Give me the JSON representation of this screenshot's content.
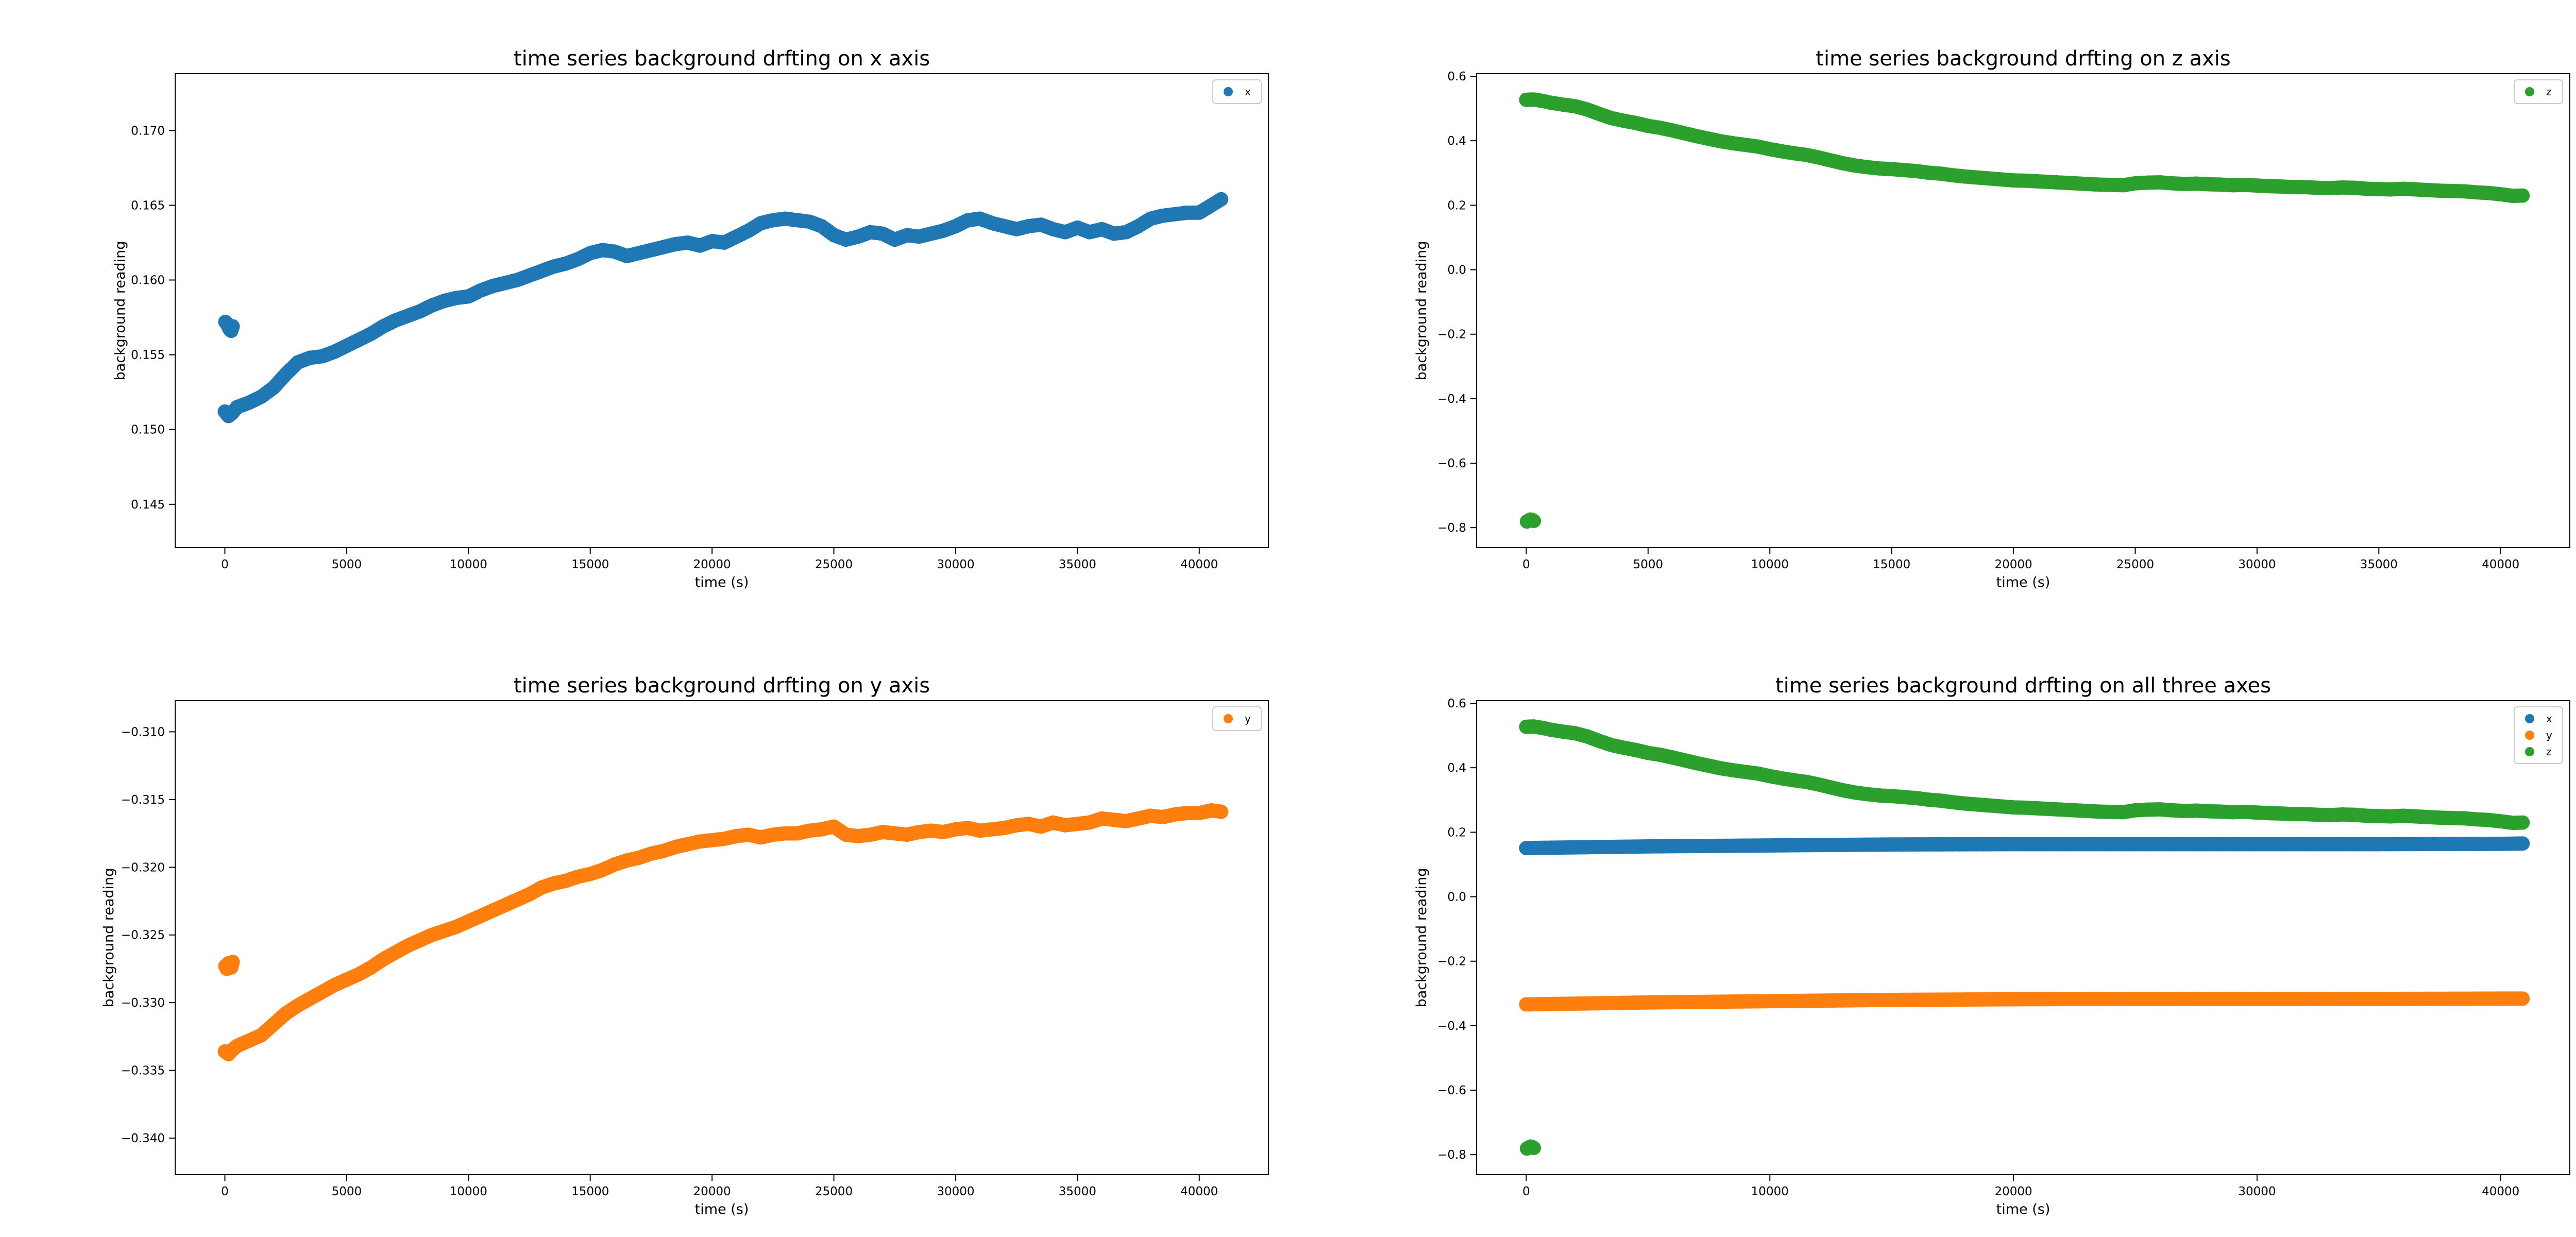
{
  "colors": {
    "x": "#1f77b4",
    "y": "#ff7f0e",
    "z": "#2ca02c"
  },
  "chart_data": [
    {
      "type": "scatter",
      "title": "time series background drfting on x axis",
      "xlabel": "time (s)",
      "ylabel": "background reading",
      "xlim": [
        -2040,
        42840
      ],
      "ylim": [
        0.1421,
        0.1738
      ],
      "xticks": [
        0,
        5000,
        10000,
        15000,
        20000,
        25000,
        30000,
        35000,
        40000
      ],
      "xtick_labels": [
        "0",
        "5000",
        "10000",
        "15000",
        "20000",
        "25000",
        "30000",
        "35000",
        "40000"
      ],
      "yticks": [
        0.145,
        0.15,
        0.155,
        0.16,
        0.165,
        0.17
      ],
      "ytick_labels": [
        "0.145",
        "0.150",
        "0.155",
        "0.160",
        "0.165",
        "0.170"
      ],
      "legend_position": "top-right",
      "series": [
        {
          "name": "x",
          "color_key": "x",
          "x": [
            0,
            150,
            300,
            500,
            1000,
            1500,
            2000,
            2500,
            3000,
            3500,
            4000,
            4500,
            5000,
            5500,
            6000,
            6500,
            7000,
            7500,
            8000,
            8500,
            9000,
            9500,
            10000,
            10500,
            11000,
            11500,
            12000,
            12500,
            13000,
            13500,
            14000,
            14500,
            15000,
            15500,
            16000,
            16500,
            17000,
            17500,
            18000,
            18500,
            19000,
            19500,
            20000,
            20500,
            21000,
            21500,
            22000,
            22500,
            23000,
            23500,
            24000,
            24500,
            25000,
            25500,
            26000,
            26500,
            27000,
            27500,
            28000,
            28500,
            29000,
            29500,
            30000,
            30500,
            31000,
            31500,
            32000,
            32500,
            33000,
            33500,
            34000,
            34500,
            35000,
            35500,
            36000,
            36500,
            37000,
            37500,
            38000,
            38500,
            39000,
            39500,
            40000,
            40500,
            40900
          ],
          "y": [
            0.1512,
            0.1509,
            0.1511,
            0.1515,
            0.1518,
            0.1522,
            0.1528,
            0.1537,
            0.1545,
            0.1548,
            0.1549,
            0.1552,
            0.1556,
            0.156,
            0.1564,
            0.1569,
            0.1573,
            0.1576,
            0.1579,
            0.1583,
            0.1586,
            0.1588,
            0.1589,
            0.1593,
            0.1596,
            0.1598,
            0.16,
            0.1603,
            0.1606,
            0.1609,
            0.1611,
            0.1614,
            0.1618,
            0.162,
            0.1619,
            0.1616,
            0.1618,
            0.162,
            0.1622,
            0.1624,
            0.1625,
            0.1623,
            0.1626,
            0.1625,
            0.1629,
            0.1633,
            0.1638,
            0.164,
            0.1641,
            0.164,
            0.1639,
            0.1636,
            0.163,
            0.1627,
            0.1629,
            0.1632,
            0.1631,
            0.1627,
            0.163,
            0.1629,
            0.1631,
            0.1633,
            0.1636,
            0.164,
            0.1641,
            0.1638,
            0.1636,
            0.1634,
            0.1636,
            0.1637,
            0.1634,
            0.1632,
            0.1635,
            0.1632,
            0.1634,
            0.1631,
            0.1632,
            0.1636,
            0.1641,
            0.1643,
            0.1644,
            0.1645,
            0.1645,
            0.165,
            0.1654
          ]
        },
        {
          "name": "x",
          "color_key": "x",
          "x": [
            20,
            80,
            140,
            200,
            260,
            320
          ],
          "y": [
            0.1572,
            0.1571,
            0.1569,
            0.1567,
            0.1566,
            0.1569
          ]
        }
      ]
    },
    {
      "type": "scatter",
      "title": "time series background drfting on z axis",
      "xlabel": "time (s)",
      "ylabel": "background reading",
      "xlim": [
        -2040,
        42840
      ],
      "ylim": [
        -0.862,
        0.608
      ],
      "xticks": [
        0,
        5000,
        10000,
        15000,
        20000,
        25000,
        30000,
        35000,
        40000
      ],
      "xtick_labels": [
        "0",
        "5000",
        "10000",
        "15000",
        "20000",
        "25000",
        "30000",
        "35000",
        "40000"
      ],
      "yticks": [
        -0.8,
        -0.6,
        -0.4,
        -0.2,
        0.0,
        0.2,
        0.4,
        0.6
      ],
      "ytick_labels": [
        "−0.8",
        "−0.6",
        "−0.4",
        "−0.2",
        "0.0",
        "0.2",
        "0.4",
        "0.6"
      ],
      "legend_position": "top-right",
      "series": [
        {
          "name": "z",
          "color_key": "z",
          "x": [
            0,
            300,
            700,
            1000,
            1500,
            2000,
            2500,
            3000,
            3500,
            4000,
            4500,
            5000,
            5500,
            6000,
            6500,
            7000,
            7500,
            8000,
            8500,
            9000,
            9500,
            10000,
            10500,
            11000,
            11500,
            12000,
            12500,
            13000,
            13500,
            14000,
            14500,
            15000,
            15500,
            16000,
            16500,
            17000,
            17500,
            18000,
            18500,
            19000,
            19500,
            20000,
            20500,
            21000,
            21500,
            22000,
            22500,
            23000,
            23500,
            24000,
            24500,
            25000,
            25500,
            26000,
            26500,
            27000,
            27500,
            28000,
            28500,
            29000,
            29500,
            30000,
            30500,
            31000,
            31500,
            32000,
            32500,
            33000,
            33500,
            34000,
            34500,
            35000,
            35500,
            36000,
            36500,
            37000,
            37500,
            38000,
            38500,
            39000,
            39500,
            40000,
            40500,
            40900
          ],
          "y": [
            0.527,
            0.528,
            0.523,
            0.518,
            0.512,
            0.507,
            0.497,
            0.483,
            0.47,
            0.462,
            0.455,
            0.446,
            0.44,
            0.432,
            0.423,
            0.414,
            0.406,
            0.398,
            0.392,
            0.387,
            0.382,
            0.374,
            0.367,
            0.361,
            0.356,
            0.348,
            0.339,
            0.33,
            0.323,
            0.318,
            0.314,
            0.312,
            0.309,
            0.306,
            0.301,
            0.298,
            0.293,
            0.289,
            0.286,
            0.283,
            0.28,
            0.277,
            0.276,
            0.274,
            0.272,
            0.27,
            0.268,
            0.266,
            0.264,
            0.263,
            0.262,
            0.268,
            0.27,
            0.271,
            0.268,
            0.266,
            0.267,
            0.265,
            0.264,
            0.262,
            0.263,
            0.261,
            0.259,
            0.258,
            0.256,
            0.256,
            0.254,
            0.253,
            0.255,
            0.254,
            0.251,
            0.25,
            0.249,
            0.251,
            0.249,
            0.247,
            0.245,
            0.244,
            0.243,
            0.24,
            0.238,
            0.234,
            0.229,
            0.23
          ]
        },
        {
          "name": "z",
          "color_key": "z",
          "x": [
            30,
            100,
            170,
            240,
            310
          ],
          "y": [
            -0.781,
            -0.778,
            -0.775,
            -0.776,
            -0.779
          ]
        }
      ]
    },
    {
      "type": "scatter",
      "title": "time series background drfting on y axis",
      "xlabel": "time (s)",
      "ylabel": "background reading",
      "xlim": [
        -2040,
        42840
      ],
      "ylim": [
        -0.3427,
        -0.3077
      ],
      "xticks": [
        0,
        5000,
        10000,
        15000,
        20000,
        25000,
        30000,
        35000,
        40000
      ],
      "xtick_labels": [
        "0",
        "5000",
        "10000",
        "15000",
        "20000",
        "25000",
        "30000",
        "35000",
        "40000"
      ],
      "yticks": [
        -0.34,
        -0.335,
        -0.33,
        -0.325,
        -0.32,
        -0.315,
        -0.31
      ],
      "ytick_labels": [
        "−0.340",
        "−0.335",
        "−0.330",
        "−0.325",
        "−0.320",
        "−0.315",
        "−0.310"
      ],
      "legend_position": "top-right",
      "series": [
        {
          "name": "y",
          "color_key": "y",
          "x": [
            0,
            150,
            300,
            500,
            1000,
            1500,
            2000,
            2500,
            3000,
            3500,
            4000,
            4500,
            5000,
            5500,
            6000,
            6500,
            7000,
            7500,
            8000,
            8500,
            9000,
            9500,
            10000,
            10500,
            11000,
            11500,
            12000,
            12500,
            13000,
            13500,
            14000,
            14500,
            15000,
            15500,
            16000,
            16500,
            17000,
            17500,
            18000,
            18500,
            19000,
            19500,
            20000,
            20500,
            21000,
            21500,
            22000,
            22500,
            23000,
            23500,
            24000,
            24500,
            25000,
            25500,
            26000,
            26500,
            27000,
            27500,
            28000,
            28500,
            29000,
            29500,
            30000,
            30500,
            31000,
            31500,
            32000,
            32500,
            33000,
            33500,
            34000,
            34500,
            35000,
            35500,
            36000,
            36500,
            37000,
            37500,
            38000,
            38500,
            39000,
            39500,
            40000,
            40500,
            40900
          ],
          "y": [
            -0.3336,
            -0.3338,
            -0.3335,
            -0.3332,
            -0.3328,
            -0.3324,
            -0.3316,
            -0.3308,
            -0.3302,
            -0.3297,
            -0.3292,
            -0.3287,
            -0.3283,
            -0.3279,
            -0.3274,
            -0.3268,
            -0.3263,
            -0.3258,
            -0.3254,
            -0.325,
            -0.3247,
            -0.3244,
            -0.324,
            -0.3236,
            -0.3232,
            -0.3228,
            -0.3224,
            -0.322,
            -0.3215,
            -0.3212,
            -0.321,
            -0.3207,
            -0.3205,
            -0.3202,
            -0.3198,
            -0.3195,
            -0.3193,
            -0.319,
            -0.3188,
            -0.3185,
            -0.3183,
            -0.3181,
            -0.318,
            -0.3179,
            -0.3177,
            -0.3176,
            -0.3178,
            -0.3176,
            -0.3175,
            -0.3175,
            -0.3173,
            -0.3172,
            -0.317,
            -0.3176,
            -0.3177,
            -0.3176,
            -0.3174,
            -0.3175,
            -0.3176,
            -0.3174,
            -0.3173,
            -0.3174,
            -0.3172,
            -0.3171,
            -0.3173,
            -0.3172,
            -0.3171,
            -0.3169,
            -0.3168,
            -0.317,
            -0.3167,
            -0.3169,
            -0.3168,
            -0.3167,
            -0.3164,
            -0.3165,
            -0.3166,
            -0.3164,
            -0.3162,
            -0.3163,
            -0.3161,
            -0.316,
            -0.316,
            -0.3158,
            -0.3159
          ]
        },
        {
          "name": "y",
          "color_key": "y",
          "x": [
            20,
            80,
            140,
            200,
            260,
            320
          ],
          "y": [
            -0.3273,
            -0.3275,
            -0.3271,
            -0.3272,
            -0.3274,
            -0.327
          ]
        }
      ]
    },
    {
      "type": "scatter",
      "title": "time series background drfting on all three axes",
      "xlabel": "time (s)",
      "ylabel": "background reading",
      "xlim": [
        -2040,
        42840
      ],
      "ylim": [
        -0.862,
        0.608
      ],
      "xticks": [
        0,
        10000,
        20000,
        30000,
        40000
      ],
      "xtick_labels": [
        "0",
        "10000",
        "20000",
        "30000",
        "40000"
      ],
      "yticks": [
        -0.8,
        -0.6,
        -0.4,
        -0.2,
        0.0,
        0.2,
        0.4,
        0.6
      ],
      "ytick_labels": [
        "−0.8",
        "−0.6",
        "−0.4",
        "−0.2",
        "0.0",
        "0.2",
        "0.4",
        "0.6"
      ],
      "legend_position": "top-right",
      "series": [
        {
          "name": "x",
          "color_key": "x",
          "x": [
            0,
            5000,
            10000,
            15000,
            20000,
            25000,
            30000,
            35000,
            40000,
            40900
          ],
          "y": [
            0.151,
            0.156,
            0.159,
            0.162,
            0.163,
            0.163,
            0.163,
            0.163,
            0.164,
            0.165
          ]
        },
        {
          "name": "y",
          "color_key": "y",
          "x": [
            0,
            5000,
            10000,
            15000,
            20000,
            25000,
            30000,
            35000,
            40000,
            40900
          ],
          "y": [
            -0.334,
            -0.328,
            -0.324,
            -0.32,
            -0.318,
            -0.317,
            -0.317,
            -0.317,
            -0.316,
            -0.316
          ]
        },
        {
          "name": "z",
          "color_key": "z",
          "x": [
            0,
            300,
            700,
            1000,
            1500,
            2000,
            2500,
            3000,
            3500,
            4000,
            4500,
            5000,
            5500,
            6000,
            6500,
            7000,
            7500,
            8000,
            8500,
            9000,
            9500,
            10000,
            10500,
            11000,
            11500,
            12000,
            12500,
            13000,
            13500,
            14000,
            14500,
            15000,
            15500,
            16000,
            16500,
            17000,
            17500,
            18000,
            18500,
            19000,
            19500,
            20000,
            20500,
            21000,
            21500,
            22000,
            22500,
            23000,
            23500,
            24000,
            24500,
            25000,
            25500,
            26000,
            26500,
            27000,
            27500,
            28000,
            28500,
            29000,
            29500,
            30000,
            30500,
            31000,
            31500,
            32000,
            32500,
            33000,
            33500,
            34000,
            34500,
            35000,
            35500,
            36000,
            36500,
            37000,
            37500,
            38000,
            38500,
            39000,
            39500,
            40000,
            40500,
            40900
          ],
          "y": [
            0.527,
            0.528,
            0.523,
            0.518,
            0.512,
            0.507,
            0.497,
            0.483,
            0.47,
            0.462,
            0.455,
            0.446,
            0.44,
            0.432,
            0.423,
            0.414,
            0.406,
            0.398,
            0.392,
            0.387,
            0.382,
            0.374,
            0.367,
            0.361,
            0.356,
            0.348,
            0.339,
            0.33,
            0.323,
            0.318,
            0.314,
            0.312,
            0.309,
            0.306,
            0.301,
            0.298,
            0.293,
            0.289,
            0.286,
            0.283,
            0.28,
            0.277,
            0.276,
            0.274,
            0.272,
            0.27,
            0.268,
            0.266,
            0.264,
            0.263,
            0.262,
            0.268,
            0.27,
            0.271,
            0.268,
            0.266,
            0.267,
            0.265,
            0.264,
            0.262,
            0.263,
            0.261,
            0.259,
            0.258,
            0.256,
            0.256,
            0.254,
            0.253,
            0.255,
            0.254,
            0.251,
            0.25,
            0.249,
            0.251,
            0.249,
            0.247,
            0.245,
            0.244,
            0.243,
            0.24,
            0.238,
            0.234,
            0.229,
            0.23
          ]
        },
        {
          "name": "z",
          "color_key": "z",
          "x": [
            30,
            100,
            170,
            240,
            310
          ],
          "y": [
            -0.781,
            -0.778,
            -0.775,
            -0.776,
            -0.779
          ]
        }
      ]
    }
  ]
}
